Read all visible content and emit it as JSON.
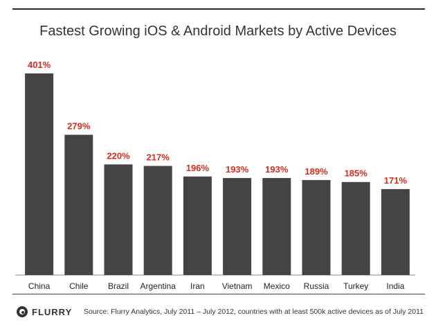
{
  "chart_data": {
    "type": "bar",
    "title": "Fastest Growing iOS & Android Markets by Active Devices",
    "categories": [
      "China",
      "Chile",
      "Brazil",
      "Argentina",
      "Iran",
      "Vietnam",
      "Mexico",
      "Russia",
      "Turkey",
      "India"
    ],
    "values": [
      401,
      279,
      220,
      217,
      196,
      193,
      193,
      189,
      185,
      171
    ],
    "data_labels": [
      "401%",
      "279%",
      "220%",
      "217%",
      "196%",
      "193%",
      "193%",
      "189%",
      "185%",
      "171%"
    ],
    "xlabel": "",
    "ylabel": "",
    "ylim": [
      0,
      401
    ],
    "grid": false,
    "bar_color": "#444444",
    "label_color": "#dd2a1b"
  },
  "footer": {
    "logo": "FLURRY",
    "source": "Source: Flurry Analytics, July 2011 – July 2012, countries with at least 500k active devices as of July 2011"
  }
}
